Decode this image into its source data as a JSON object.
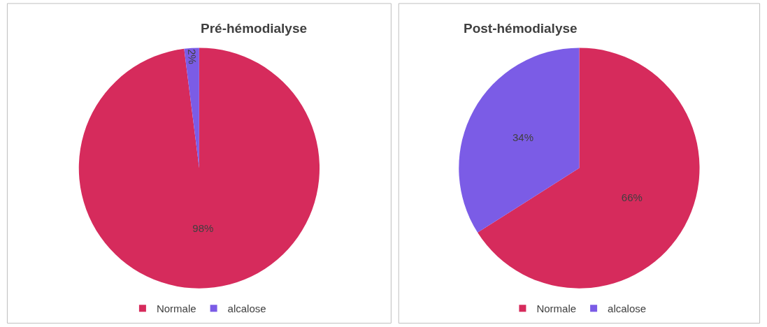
{
  "chart_data": [
    {
      "type": "pie",
      "title": "Pré-hémodialyse",
      "categories": [
        "Normale",
        "alcalose"
      ],
      "values": [
        98,
        2
      ],
      "colors": [
        "#d62b5c",
        "#7b5ce6"
      ],
      "value_labels": [
        "98%",
        "2%"
      ],
      "legend": "bottom"
    },
    {
      "type": "pie",
      "title": "Post-hémodialyse",
      "categories": [
        "Normale",
        "alcalose"
      ],
      "values": [
        66,
        34
      ],
      "colors": [
        "#d62b5c",
        "#7b5ce6"
      ],
      "value_labels": [
        "66%",
        "34%"
      ],
      "legend": "bottom"
    }
  ]
}
